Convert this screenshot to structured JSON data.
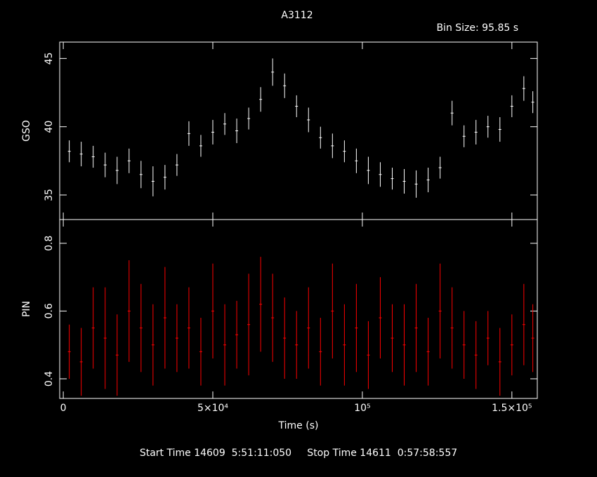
{
  "title": "A3112",
  "bin_size": "Bin Size: 95.85 s",
  "footer": "Start Time 14609  5:51:11:050     Stop Time 14611  0:57:58:557",
  "chart_data": [
    {
      "type": "errorbar",
      "ylabel": "GSO",
      "color": "#ffffff",
      "ylim": [
        33.2,
        46.2
      ],
      "yticks": [
        35,
        40,
        45
      ],
      "x": [
        2000,
        6000,
        10000,
        14000,
        18000,
        22000,
        26000,
        30000,
        34000,
        38000,
        42000,
        46000,
        50000,
        54000,
        58000,
        62000,
        66000,
        70000,
        74000,
        78000,
        82000,
        86000,
        90000,
        94000,
        98000,
        102000,
        106000,
        110000,
        114000,
        118000,
        122000,
        126000,
        130000,
        134000,
        138000,
        142000,
        146000,
        150000,
        154000,
        157000
      ],
      "values": [
        38.2,
        38.0,
        37.8,
        37.2,
        36.8,
        37.5,
        36.5,
        36.0,
        36.3,
        37.2,
        39.5,
        38.6,
        39.6,
        40.2,
        39.7,
        40.6,
        42.0,
        44.0,
        43.0,
        41.5,
        40.5,
        39.2,
        38.6,
        38.2,
        37.5,
        36.8,
        36.5,
        36.2,
        36.0,
        35.8,
        36.1,
        37.0,
        41.0,
        39.3,
        39.6,
        40.0,
        39.8,
        41.5,
        42.8,
        41.8
      ],
      "errors": [
        0.8,
        0.9,
        0.8,
        0.9,
        1.0,
        0.9,
        1.0,
        1.1,
        0.9,
        0.8,
        0.9,
        0.8,
        0.9,
        0.8,
        0.9,
        0.8,
        0.9,
        1.0,
        0.9,
        0.8,
        0.9,
        0.8,
        0.9,
        0.8,
        0.9,
        1.0,
        0.9,
        0.8,
        0.9,
        1.0,
        0.9,
        0.8,
        0.9,
        0.8,
        0.9,
        0.8,
        0.9,
        0.8,
        0.9,
        0.8
      ]
    },
    {
      "type": "errorbar",
      "ylabel": "PIN",
      "xlabel": "Time (s)",
      "color": "#ff0000",
      "xlim": [
        -1200,
        158500
      ],
      "xticks": [
        0,
        {
          "value": 50000,
          "label": "5×10⁴"
        },
        {
          "value": 100000,
          "label": "10⁵"
        },
        {
          "value": 150000,
          "label": "1.5×10⁵"
        }
      ],
      "ylim": [
        0.342,
        0.87
      ],
      "yticks": [
        0.4,
        0.6,
        0.8
      ],
      "x": [
        2000,
        6000,
        10000,
        14000,
        18000,
        22000,
        26000,
        30000,
        34000,
        38000,
        42000,
        46000,
        50000,
        54000,
        58000,
        62000,
        66000,
        70000,
        74000,
        78000,
        82000,
        86000,
        90000,
        94000,
        98000,
        102000,
        106000,
        110000,
        114000,
        118000,
        122000,
        126000,
        130000,
        134000,
        138000,
        142000,
        146000,
        150000,
        154000,
        157000
      ],
      "values": [
        0.48,
        0.45,
        0.55,
        0.52,
        0.47,
        0.6,
        0.55,
        0.5,
        0.58,
        0.52,
        0.55,
        0.48,
        0.6,
        0.5,
        0.53,
        0.56,
        0.62,
        0.58,
        0.52,
        0.5,
        0.55,
        0.48,
        0.6,
        0.5,
        0.55,
        0.47,
        0.58,
        0.52,
        0.5,
        0.55,
        0.48,
        0.6,
        0.55,
        0.5,
        0.47,
        0.52,
        0.45,
        0.5,
        0.56,
        0.52
      ],
      "errors": [
        0.08,
        0.1,
        0.12,
        0.15,
        0.12,
        0.15,
        0.13,
        0.12,
        0.15,
        0.1,
        0.12,
        0.1,
        0.14,
        0.12,
        0.1,
        0.15,
        0.14,
        0.13,
        0.12,
        0.1,
        0.12,
        0.1,
        0.14,
        0.12,
        0.13,
        0.1,
        0.12,
        0.1,
        0.12,
        0.13,
        0.1,
        0.14,
        0.12,
        0.1,
        0.1,
        0.08,
        0.1,
        0.09,
        0.12,
        0.1
      ]
    }
  ]
}
